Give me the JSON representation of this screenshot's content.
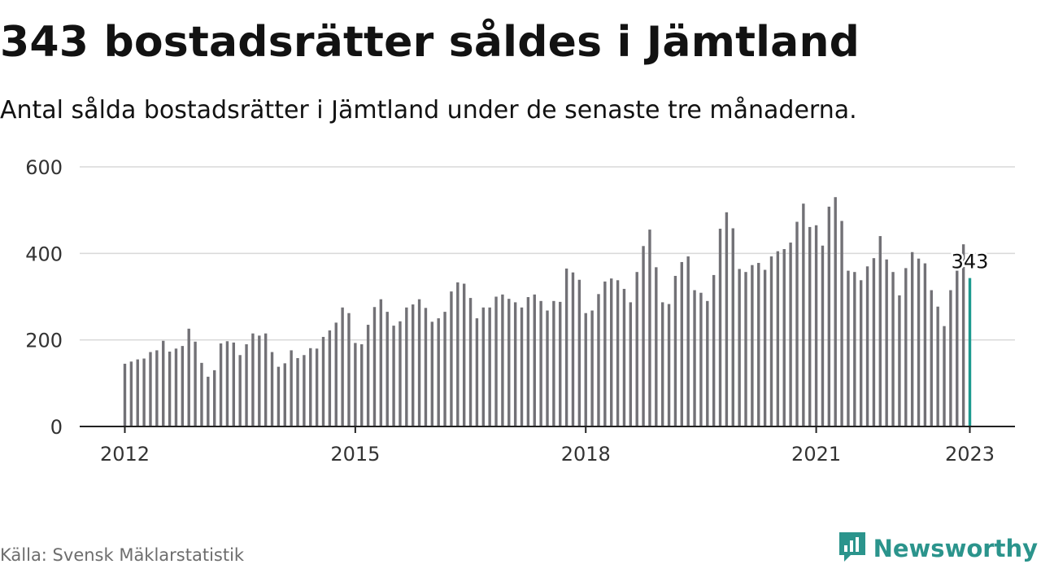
{
  "header": {
    "title": "343 bostadsrätter såldes i Jämtland",
    "subtitle": "Antal sålda bostadsrätter i Jämtland under de senaste tre månaderna."
  },
  "footer": {
    "source": "Källa: Svensk Mäklarstatistik",
    "brand": "Newsworthy",
    "brand_icon": "chart-bubble-icon"
  },
  "colors": {
    "bars": "#727176",
    "highlight": "#1d9a8f",
    "grid": "#d9d9d9",
    "axis": "#222222",
    "brand": "#2b948c"
  },
  "chart_data": {
    "type": "bar",
    "x_start": "2012-01",
    "x_end": "2023-01",
    "frequency": "monthly",
    "ylim": [
      0,
      600
    ],
    "yticks": [
      0,
      200,
      400,
      600
    ],
    "xticks": [
      "2012",
      "2015",
      "2018",
      "2021",
      "2023"
    ],
    "grid": true,
    "highlight_last": true,
    "highlight_label": "343",
    "values": [
      145,
      150,
      155,
      157,
      172,
      176,
      198,
      173,
      180,
      186,
      226,
      196,
      147,
      115,
      130,
      192,
      197,
      194,
      165,
      190,
      215,
      210,
      215,
      172,
      138,
      146,
      176,
      158,
      165,
      181,
      180,
      207,
      222,
      240,
      275,
      262,
      193,
      190,
      235,
      276,
      294,
      265,
      233,
      243,
      275,
      282,
      294,
      274,
      242,
      250,
      265,
      312,
      333,
      330,
      297,
      250,
      275,
      275,
      300,
      305,
      295,
      287,
      275,
      299,
      305,
      290,
      268,
      290,
      288,
      365,
      356,
      339,
      262,
      268,
      306,
      335,
      342,
      338,
      318,
      287,
      357,
      417,
      455,
      368,
      287,
      283,
      348,
      380,
      393,
      315,
      309,
      290,
      350,
      457,
      495,
      458,
      364,
      357,
      373,
      378,
      362,
      393,
      405,
      410,
      425,
      473,
      515,
      461,
      465,
      418,
      508,
      530,
      475,
      360,
      357,
      338,
      370,
      389,
      440,
      386,
      357,
      303,
      366,
      403,
      388,
      377,
      315,
      277,
      232,
      315,
      360,
      421,
      343
    ]
  }
}
